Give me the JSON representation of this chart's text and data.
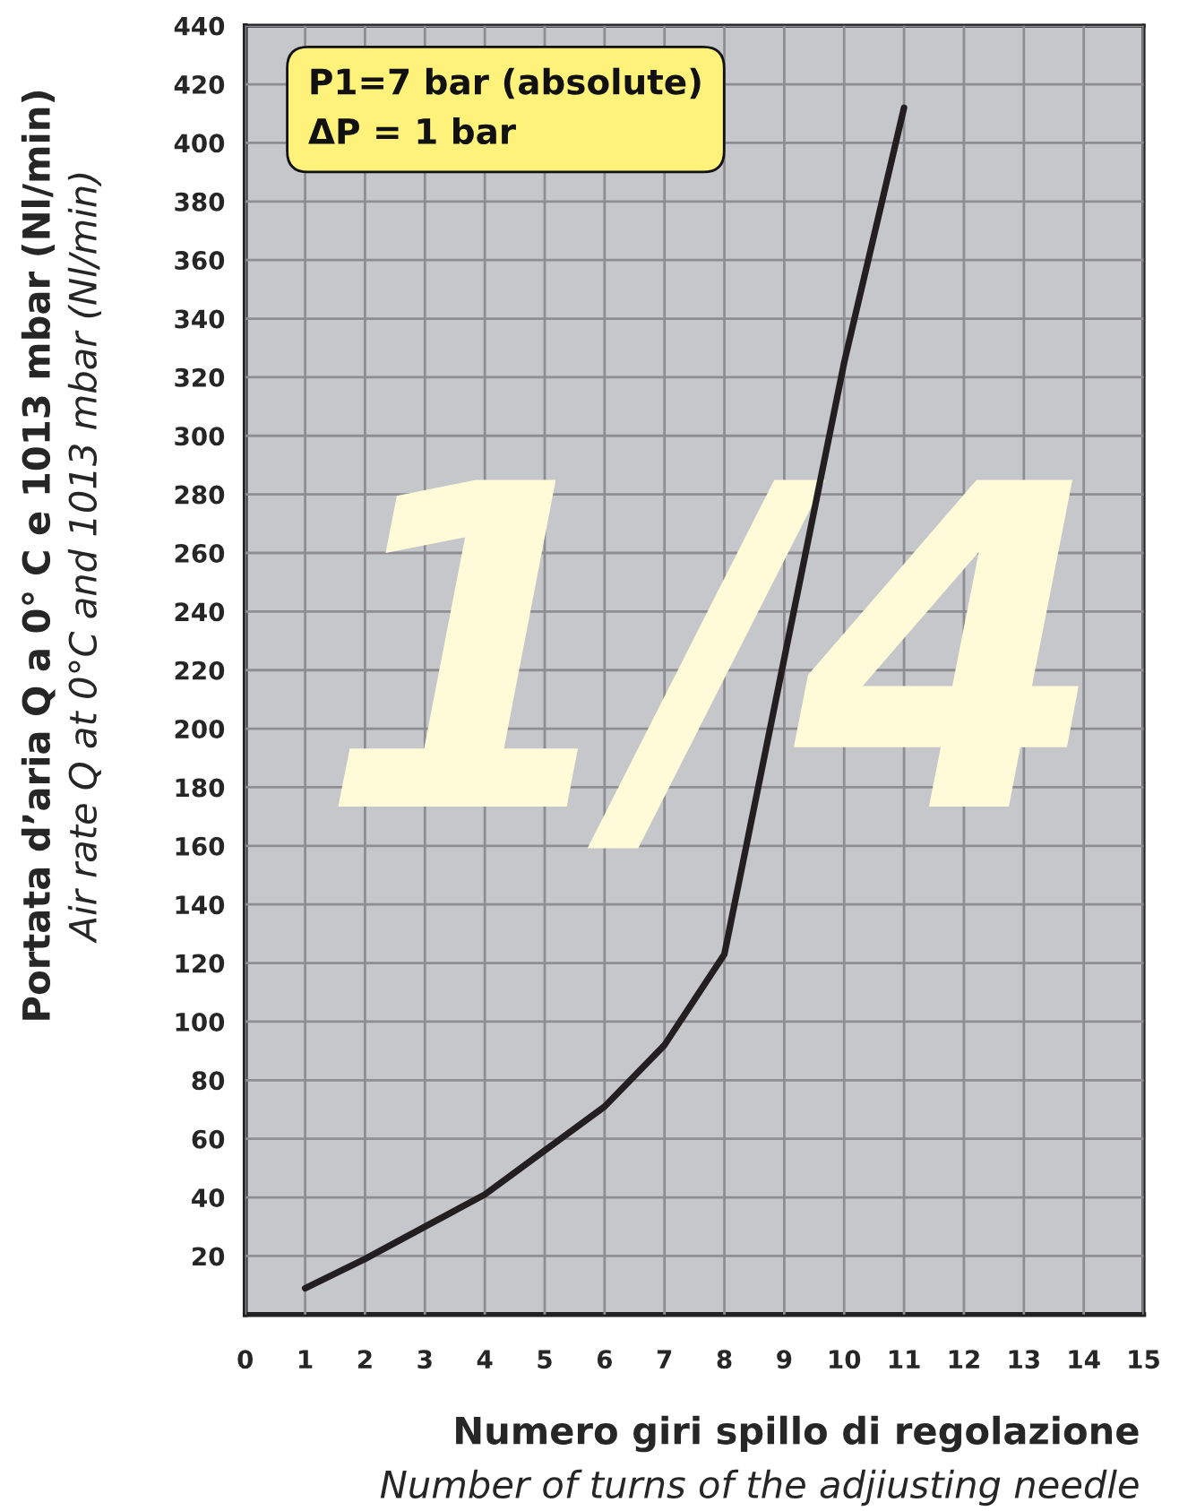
{
  "chart_data": {
    "type": "line",
    "xlabel": "Numero giri spillo di regolazione\nNumber of turns of the adjiusting needle",
    "ylabel": "Portata d’aria Q a 0° C e 1013 mbar (Nl/min)\nAir rate Q at 0°C and 1013 mbar (Nl/min)",
    "annotations": [
      "P1=7 bar (absolute)\nΔP = 1 bar",
      "1/4"
    ],
    "series": [
      {
        "color": "#231f20",
        "x": [
          1,
          2,
          3,
          4,
          5,
          6,
          7,
          8,
          10,
          11
        ],
        "values": [
          9,
          19,
          30,
          41,
          56,
          71,
          92,
          123,
          325,
          412
        ]
      }
    ],
    "xlim": [
      0,
      15
    ],
    "xticks": [
      0,
      1,
      2,
      3,
      4,
      5,
      6,
      7,
      8,
      9,
      10,
      11,
      12,
      13,
      14,
      15
    ],
    "ylim": [
      0,
      440
    ],
    "yticks": [
      20,
      40,
      60,
      80,
      100,
      120,
      140,
      160,
      180,
      200,
      220,
      240,
      260,
      280,
      300,
      320,
      340,
      360,
      380,
      400,
      420,
      440
    ],
    "grid": true
  }
}
